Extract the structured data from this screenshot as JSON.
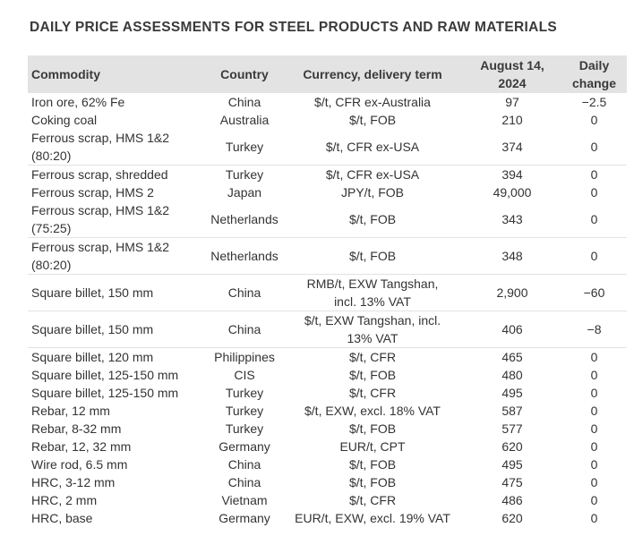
{
  "title": "DAILY PRICE ASSESSMENTS FOR STEEL PRODUCTS AND RAW MATERIALS",
  "table": {
    "headers": {
      "commodity": "Commodity",
      "country": "Country",
      "currency": "Currency, delivery term",
      "date_line1": "August 14,",
      "date_line2": "2024",
      "change_line1": "Daily",
      "change_line2": "change"
    },
    "rows": [
      {
        "commodity_l1": "Iron ore, 62% Fe",
        "commodity_l2": "",
        "country": "China",
        "currency_l1": "$/t, CFR ex-Australia",
        "currency_l2": "",
        "price": "97",
        "change": "−2.5"
      },
      {
        "commodity_l1": "Coking coal",
        "commodity_l2": "",
        "country": "Australia",
        "currency_l1": "$/t, FOB",
        "currency_l2": "",
        "price": "210",
        "change": "0"
      },
      {
        "commodity_l1": "Ferrous scrap, HMS 1&2",
        "commodity_l2": "(80:20)",
        "country": "Turkey",
        "currency_l1": "$/t, CFR ex-USA",
        "currency_l2": "",
        "price": "374",
        "change": "0"
      },
      {
        "commodity_l1": "Ferrous scrap, shredded",
        "commodity_l2": "",
        "country": "Turkey",
        "currency_l1": "$/t, CFR ex-USA",
        "currency_l2": "",
        "price": "394",
        "change": "0"
      },
      {
        "commodity_l1": "Ferrous scrap, HMS 2",
        "commodity_l2": "",
        "country": "Japan",
        "currency_l1": "JPY/t, FOB",
        "currency_l2": "",
        "price": "49,000",
        "change": "0"
      },
      {
        "commodity_l1": "Ferrous scrap, HMS 1&2",
        "commodity_l2": "(75:25)",
        "country": "Netherlands",
        "currency_l1": "$/t, FOB",
        "currency_l2": "",
        "price": "343",
        "change": "0"
      },
      {
        "commodity_l1": "Ferrous scrap, HMS 1&2",
        "commodity_l2": "(80:20)",
        "country": "Netherlands",
        "currency_l1": "$/t, FOB",
        "currency_l2": "",
        "price": "348",
        "change": "0"
      },
      {
        "commodity_l1": "Square billet, 150 mm",
        "commodity_l2": "",
        "country": "China",
        "currency_l1": "RMB/t, EXW Tangshan,",
        "currency_l2": "incl. 13% VAT",
        "price": "2,900",
        "change": "−60"
      },
      {
        "commodity_l1": "Square billet, 150 mm",
        "commodity_l2": "",
        "country": "China",
        "currency_l1": "$/t, EXW Tangshan, incl.",
        "currency_l2": "13% VAT",
        "price": "406",
        "change": "−8"
      },
      {
        "commodity_l1": "Square billet, 120 mm",
        "commodity_l2": "",
        "country": "Philippines",
        "currency_l1": "$/t, CFR",
        "currency_l2": "",
        "price": "465",
        "change": "0"
      },
      {
        "commodity_l1": "Square billet, 125-150 mm",
        "commodity_l2": "",
        "country": "CIS",
        "currency_l1": "$/t, FOB",
        "currency_l2": "",
        "price": "480",
        "change": "0"
      },
      {
        "commodity_l1": "Square billet, 125-150 mm",
        "commodity_l2": "",
        "country": "Turkey",
        "currency_l1": "$/t, CFR",
        "currency_l2": "",
        "price": "495",
        "change": "0"
      },
      {
        "commodity_l1": "Rebar, 12 mm",
        "commodity_l2": "",
        "country": "Turkey",
        "currency_l1": "$/t, EXW, excl. 18% VAT",
        "currency_l2": "",
        "price": "587",
        "change": "0"
      },
      {
        "commodity_l1": "Rebar, 8-32 mm",
        "commodity_l2": "",
        "country": "Turkey",
        "currency_l1": "$/t, FOB",
        "currency_l2": "",
        "price": "577",
        "change": "0"
      },
      {
        "commodity_l1": "Rebar, 12, 32 mm",
        "commodity_l2": "",
        "country": "Germany",
        "currency_l1": "EUR/t, CPT",
        "currency_l2": "",
        "price": "620",
        "change": "0"
      },
      {
        "commodity_l1": "Wire rod, 6.5 mm",
        "commodity_l2": "",
        "country": "China",
        "currency_l1": "$/t, FOB",
        "currency_l2": "",
        "price": "495",
        "change": "0"
      },
      {
        "commodity_l1": "HRC, 3-12 mm",
        "commodity_l2": "",
        "country": "China",
        "currency_l1": "$/t, FOB",
        "currency_l2": "",
        "price": "475",
        "change": "0"
      },
      {
        "commodity_l1": "HRC, 2 mm",
        "commodity_l2": "",
        "country": "Vietnam",
        "currency_l1": "$/t, CFR",
        "currency_l2": "",
        "price": "486",
        "change": "0"
      },
      {
        "commodity_l1": "HRC, base",
        "commodity_l2": "",
        "country": "Germany",
        "currency_l1": "EUR/t, EXW, excl. 19% VAT",
        "currency_l2": "",
        "price": "620",
        "change": "0"
      }
    ]
  }
}
